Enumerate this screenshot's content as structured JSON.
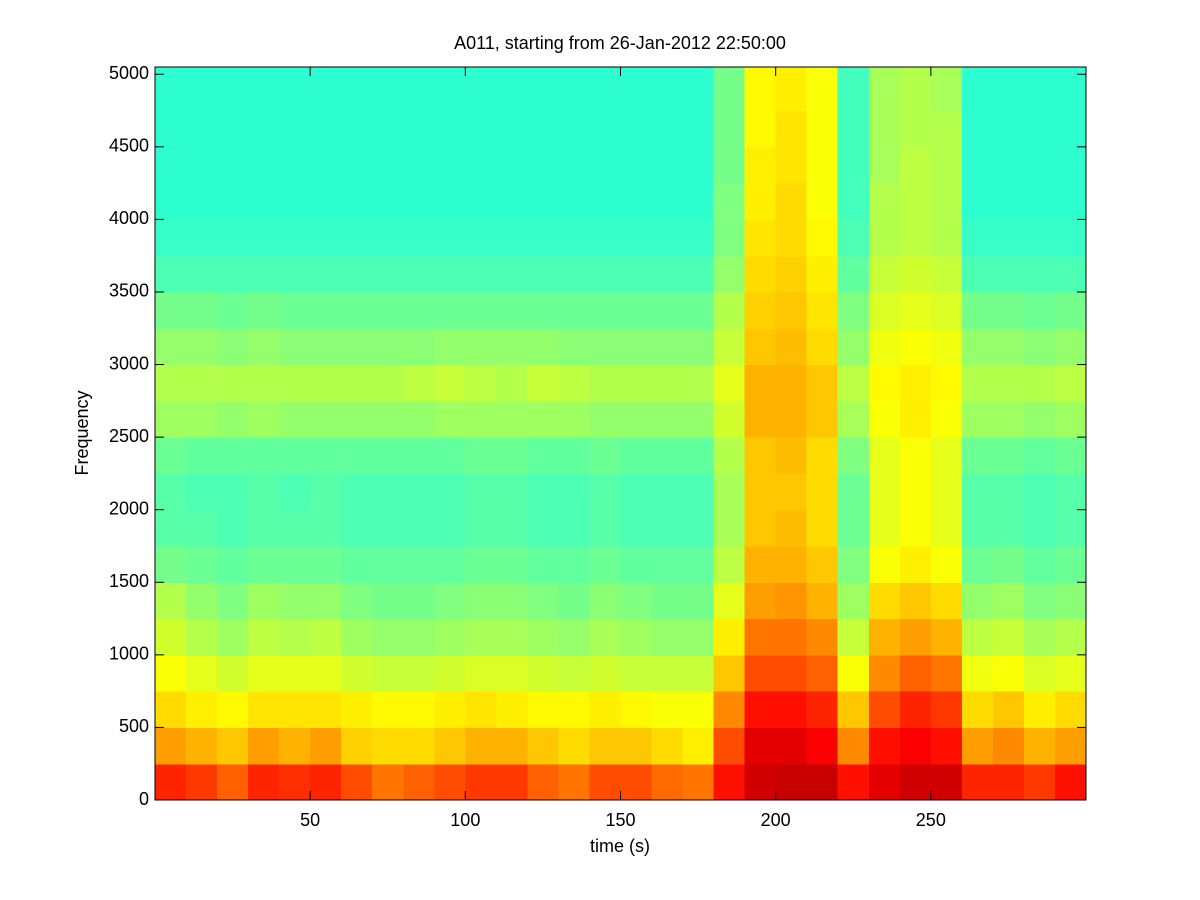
{
  "chart_data": {
    "type": "spectrogram",
    "title": "A011, starting from 26-Jan-2012 22:50:00",
    "x_label": "time (s)",
    "y_label": "Frequency",
    "colormap": "jet",
    "clim": [
      0,
      1
    ],
    "xlim": [
      0,
      300
    ],
    "xticks": [
      50,
      100,
      150,
      200,
      250
    ],
    "ylim": [
      0,
      5050
    ],
    "yticks": [
      0,
      500,
      1000,
      1500,
      2000,
      2500,
      3000,
      3500,
      4000,
      4500,
      5000
    ],
    "x": [
      5,
      15,
      25,
      35,
      45,
      55,
      65,
      75,
      85,
      95,
      105,
      115,
      125,
      135,
      145,
      155,
      165,
      175,
      185,
      195,
      205,
      215,
      225,
      235,
      245,
      255,
      265,
      275,
      285,
      295
    ],
    "y": [
      125,
      375,
      625,
      875,
      1125,
      1375,
      1625,
      1875,
      2125,
      2375,
      2625,
      2875,
      3125,
      3375,
      3625,
      3875,
      4125,
      4375,
      4625,
      4875
    ],
    "values": [
      [
        0.84,
        0.82,
        0.78,
        0.84,
        0.83,
        0.84,
        0.8,
        0.76,
        0.78,
        0.8,
        0.82,
        0.82,
        0.78,
        0.76,
        0.8,
        0.8,
        0.77,
        0.76,
        0.86,
        0.92,
        0.93,
        0.93,
        0.86,
        0.9,
        0.92,
        0.92,
        0.84,
        0.84,
        0.82,
        0.86
      ],
      [
        0.72,
        0.7,
        0.68,
        0.72,
        0.7,
        0.72,
        0.67,
        0.66,
        0.66,
        0.68,
        0.7,
        0.7,
        0.68,
        0.66,
        0.68,
        0.68,
        0.66,
        0.64,
        0.8,
        0.9,
        0.9,
        0.88,
        0.74,
        0.86,
        0.88,
        0.86,
        0.72,
        0.74,
        0.7,
        0.72
      ],
      [
        0.66,
        0.64,
        0.63,
        0.65,
        0.65,
        0.65,
        0.64,
        0.63,
        0.63,
        0.64,
        0.65,
        0.64,
        0.63,
        0.63,
        0.64,
        0.63,
        0.62,
        0.62,
        0.74,
        0.86,
        0.86,
        0.84,
        0.68,
        0.8,
        0.84,
        0.82,
        0.66,
        0.68,
        0.64,
        0.66
      ],
      [
        0.62,
        0.6,
        0.58,
        0.6,
        0.6,
        0.6,
        0.58,
        0.57,
        0.57,
        0.58,
        0.59,
        0.59,
        0.58,
        0.57,
        0.58,
        0.57,
        0.57,
        0.57,
        0.68,
        0.8,
        0.8,
        0.78,
        0.62,
        0.74,
        0.78,
        0.76,
        0.61,
        0.62,
        0.59,
        0.6
      ],
      [
        0.58,
        0.55,
        0.53,
        0.56,
        0.55,
        0.56,
        0.53,
        0.52,
        0.52,
        0.53,
        0.54,
        0.54,
        0.53,
        0.52,
        0.54,
        0.53,
        0.52,
        0.52,
        0.64,
        0.76,
        0.76,
        0.74,
        0.57,
        0.7,
        0.72,
        0.7,
        0.56,
        0.57,
        0.54,
        0.55
      ],
      [
        0.55,
        0.52,
        0.5,
        0.53,
        0.52,
        0.52,
        0.5,
        0.49,
        0.49,
        0.5,
        0.51,
        0.51,
        0.5,
        0.49,
        0.51,
        0.5,
        0.49,
        0.49,
        0.6,
        0.72,
        0.73,
        0.7,
        0.53,
        0.66,
        0.68,
        0.66,
        0.52,
        0.53,
        0.5,
        0.51
      ],
      [
        0.49,
        0.48,
        0.47,
        0.48,
        0.48,
        0.48,
        0.47,
        0.47,
        0.47,
        0.47,
        0.48,
        0.48,
        0.47,
        0.47,
        0.48,
        0.47,
        0.47,
        0.47,
        0.56,
        0.7,
        0.7,
        0.68,
        0.5,
        0.62,
        0.64,
        0.62,
        0.48,
        0.49,
        0.47,
        0.48
      ],
      [
        0.46,
        0.46,
        0.45,
        0.46,
        0.46,
        0.46,
        0.45,
        0.45,
        0.45,
        0.45,
        0.46,
        0.46,
        0.45,
        0.45,
        0.46,
        0.45,
        0.45,
        0.45,
        0.54,
        0.68,
        0.69,
        0.66,
        0.48,
        0.6,
        0.62,
        0.6,
        0.46,
        0.46,
        0.45,
        0.46
      ],
      [
        0.46,
        0.45,
        0.45,
        0.46,
        0.45,
        0.46,
        0.45,
        0.45,
        0.45,
        0.45,
        0.46,
        0.46,
        0.45,
        0.45,
        0.46,
        0.45,
        0.45,
        0.45,
        0.54,
        0.68,
        0.68,
        0.66,
        0.48,
        0.6,
        0.62,
        0.6,
        0.46,
        0.46,
        0.45,
        0.46
      ],
      [
        0.48,
        0.47,
        0.47,
        0.47,
        0.47,
        0.47,
        0.47,
        0.47,
        0.47,
        0.47,
        0.48,
        0.48,
        0.47,
        0.47,
        0.48,
        0.47,
        0.47,
        0.47,
        0.55,
        0.68,
        0.69,
        0.66,
        0.5,
        0.6,
        0.62,
        0.6,
        0.48,
        0.48,
        0.47,
        0.48
      ],
      [
        0.53,
        0.53,
        0.52,
        0.53,
        0.52,
        0.52,
        0.52,
        0.52,
        0.52,
        0.53,
        0.53,
        0.53,
        0.53,
        0.53,
        0.52,
        0.52,
        0.52,
        0.52,
        0.58,
        0.7,
        0.7,
        0.68,
        0.54,
        0.62,
        0.64,
        0.62,
        0.53,
        0.53,
        0.52,
        0.53
      ],
      [
        0.55,
        0.55,
        0.55,
        0.55,
        0.55,
        0.55,
        0.55,
        0.55,
        0.56,
        0.57,
        0.56,
        0.55,
        0.57,
        0.56,
        0.55,
        0.55,
        0.55,
        0.55,
        0.6,
        0.7,
        0.7,
        0.68,
        0.56,
        0.63,
        0.64,
        0.63,
        0.55,
        0.55,
        0.55,
        0.56
      ],
      [
        0.52,
        0.52,
        0.51,
        0.52,
        0.51,
        0.51,
        0.51,
        0.51,
        0.51,
        0.52,
        0.52,
        0.52,
        0.52,
        0.51,
        0.51,
        0.51,
        0.51,
        0.51,
        0.57,
        0.68,
        0.69,
        0.66,
        0.52,
        0.61,
        0.62,
        0.61,
        0.52,
        0.52,
        0.51,
        0.52
      ],
      [
        0.49,
        0.49,
        0.48,
        0.49,
        0.48,
        0.48,
        0.48,
        0.48,
        0.48,
        0.48,
        0.48,
        0.48,
        0.48,
        0.48,
        0.48,
        0.48,
        0.48,
        0.48,
        0.55,
        0.67,
        0.68,
        0.65,
        0.5,
        0.59,
        0.6,
        0.59,
        0.49,
        0.49,
        0.48,
        0.49
      ],
      [
        0.45,
        0.45,
        0.45,
        0.45,
        0.45,
        0.45,
        0.45,
        0.45,
        0.45,
        0.45,
        0.45,
        0.45,
        0.45,
        0.45,
        0.45,
        0.45,
        0.45,
        0.45,
        0.52,
        0.66,
        0.67,
        0.64,
        0.47,
        0.57,
        0.58,
        0.57,
        0.45,
        0.45,
        0.45,
        0.45
      ],
      [
        0.43,
        0.43,
        0.43,
        0.43,
        0.43,
        0.43,
        0.43,
        0.43,
        0.43,
        0.43,
        0.43,
        0.43,
        0.43,
        0.43,
        0.43,
        0.43,
        0.43,
        0.43,
        0.5,
        0.65,
        0.66,
        0.63,
        0.45,
        0.55,
        0.56,
        0.55,
        0.43,
        0.43,
        0.43,
        0.43
      ],
      [
        0.42,
        0.42,
        0.42,
        0.42,
        0.42,
        0.42,
        0.42,
        0.42,
        0.42,
        0.42,
        0.42,
        0.42,
        0.42,
        0.42,
        0.42,
        0.42,
        0.42,
        0.42,
        0.5,
        0.64,
        0.66,
        0.62,
        0.44,
        0.55,
        0.56,
        0.55,
        0.42,
        0.42,
        0.42,
        0.42
      ],
      [
        0.42,
        0.42,
        0.42,
        0.42,
        0.42,
        0.42,
        0.42,
        0.42,
        0.42,
        0.42,
        0.42,
        0.42,
        0.42,
        0.42,
        0.42,
        0.42,
        0.42,
        0.42,
        0.49,
        0.64,
        0.65,
        0.62,
        0.44,
        0.54,
        0.56,
        0.55,
        0.42,
        0.42,
        0.42,
        0.42
      ],
      [
        0.42,
        0.42,
        0.42,
        0.42,
        0.42,
        0.42,
        0.42,
        0.42,
        0.42,
        0.42,
        0.42,
        0.42,
        0.42,
        0.42,
        0.42,
        0.42,
        0.42,
        0.42,
        0.49,
        0.63,
        0.65,
        0.62,
        0.44,
        0.54,
        0.55,
        0.55,
        0.42,
        0.42,
        0.42,
        0.42
      ],
      [
        0.42,
        0.42,
        0.42,
        0.42,
        0.42,
        0.42,
        0.42,
        0.42,
        0.42,
        0.42,
        0.42,
        0.42,
        0.42,
        0.42,
        0.42,
        0.42,
        0.42,
        0.42,
        0.49,
        0.63,
        0.64,
        0.62,
        0.44,
        0.54,
        0.55,
        0.54,
        0.42,
        0.42,
        0.42,
        0.42
      ]
    ]
  }
}
